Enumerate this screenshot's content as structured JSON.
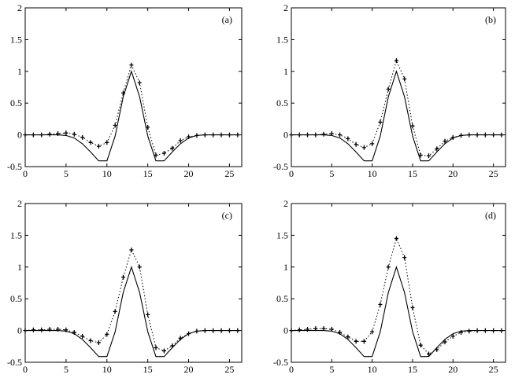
{
  "chart_data": [
    {
      "type": "line",
      "panel_label": "(a)",
      "xlim": [
        0,
        26.5
      ],
      "ylim": [
        -0.5,
        2
      ],
      "xticks": [
        0,
        5,
        10,
        15,
        20,
        25
      ],
      "yticks": [
        -0.5,
        0,
        0.5,
        1,
        1.5,
        2
      ],
      "xtick_labels": [
        "0",
        "5",
        "10",
        "15",
        "20",
        "25"
      ],
      "ytick_labels": [
        "-0.5",
        "0",
        "0.5",
        "1",
        "1.5",
        "2"
      ],
      "grid": false,
      "series": [
        {
          "style": "solid",
          "x": [
            0,
            1,
            2,
            3,
            4,
            5,
            6,
            7,
            8,
            9,
            10,
            11,
            12,
            13,
            14,
            15,
            16,
            17,
            18,
            19,
            20,
            21,
            22,
            23,
            24,
            25,
            26
          ],
          "y": [
            0,
            0,
            0,
            0,
            0,
            -0.01,
            -0.05,
            -0.14,
            -0.27,
            -0.41,
            -0.41,
            -0.02,
            0.6,
            1.0,
            0.6,
            -0.02,
            -0.41,
            -0.41,
            -0.27,
            -0.14,
            -0.05,
            -0.01,
            0,
            0,
            0,
            0,
            0
          ]
        },
        {
          "style": "dotted-plus",
          "x": [
            0,
            1,
            2,
            3,
            4,
            5,
            6,
            7,
            8,
            9,
            10,
            11,
            12,
            13,
            14,
            15,
            16,
            17,
            18,
            19,
            20,
            21,
            22,
            23,
            24,
            25,
            26
          ],
          "y": [
            0,
            0,
            0,
            0.01,
            0.02,
            0.03,
            0.01,
            -0.04,
            -0.12,
            -0.18,
            -0.12,
            0.15,
            0.66,
            1.1,
            0.82,
            0.12,
            -0.32,
            -0.29,
            -0.21,
            -0.09,
            -0.03,
            -0.01,
            0,
            0,
            0,
            0,
            0
          ]
        }
      ]
    },
    {
      "type": "line",
      "panel_label": "(b)",
      "xlim": [
        0,
        26.5
      ],
      "ylim": [
        -0.5,
        2
      ],
      "xticks": [
        0,
        5,
        10,
        15,
        20,
        25
      ],
      "yticks": [
        -0.5,
        0,
        0.5,
        1,
        1.5,
        2
      ],
      "xtick_labels": [
        "0",
        "5",
        "10",
        "15",
        "20",
        "25"
      ],
      "ytick_labels": [
        "-0.5",
        "0",
        "0.5",
        "1",
        "1.5",
        "2"
      ],
      "grid": false,
      "series": [
        {
          "style": "solid",
          "x": [
            0,
            1,
            2,
            3,
            4,
            5,
            6,
            7,
            8,
            9,
            10,
            11,
            12,
            13,
            14,
            15,
            16,
            17,
            18,
            19,
            20,
            21,
            22,
            23,
            24,
            25,
            26
          ],
          "y": [
            0,
            0,
            0,
            0,
            0,
            -0.01,
            -0.05,
            -0.14,
            -0.27,
            -0.41,
            -0.41,
            -0.02,
            0.6,
            1.0,
            0.6,
            -0.02,
            -0.41,
            -0.41,
            -0.27,
            -0.14,
            -0.05,
            -0.01,
            0,
            0,
            0,
            0,
            0
          ]
        },
        {
          "style": "dotted-plus",
          "x": [
            0,
            1,
            2,
            3,
            4,
            5,
            6,
            7,
            8,
            9,
            10,
            11,
            12,
            13,
            14,
            15,
            16,
            17,
            18,
            19,
            20,
            21,
            22,
            23,
            24,
            25,
            26
          ],
          "y": [
            0,
            0,
            0,
            0,
            0.01,
            0.02,
            0.0,
            -0.06,
            -0.15,
            -0.2,
            -0.14,
            0.2,
            0.72,
            1.17,
            0.88,
            0.14,
            -0.32,
            -0.33,
            -0.22,
            -0.1,
            -0.04,
            -0.01,
            0,
            0,
            0,
            0,
            0
          ]
        }
      ]
    },
    {
      "type": "line",
      "panel_label": "(c)",
      "xlim": [
        0,
        26.5
      ],
      "ylim": [
        -0.5,
        2
      ],
      "xticks": [
        0,
        5,
        10,
        15,
        20,
        25
      ],
      "yticks": [
        -0.5,
        0,
        0.5,
        1,
        1.5,
        2
      ],
      "xtick_labels": [
        "0",
        "5",
        "10",
        "15",
        "20",
        "25"
      ],
      "ytick_labels": [
        "-0.5",
        "0",
        "0.5",
        "1",
        "1.5",
        "2"
      ],
      "grid": false,
      "series": [
        {
          "style": "solid",
          "x": [
            0,
            1,
            2,
            3,
            4,
            5,
            6,
            7,
            8,
            9,
            10,
            11,
            12,
            13,
            14,
            15,
            16,
            17,
            18,
            19,
            20,
            21,
            22,
            23,
            24,
            25,
            26
          ],
          "y": [
            0,
            0,
            0,
            0,
            0,
            -0.01,
            -0.05,
            -0.14,
            -0.27,
            -0.41,
            -0.41,
            -0.02,
            0.6,
            1.0,
            0.6,
            -0.02,
            -0.41,
            -0.41,
            -0.27,
            -0.14,
            -0.05,
            -0.01,
            0,
            0,
            0,
            0,
            0
          ]
        },
        {
          "style": "dotted-plus",
          "x": [
            0,
            1,
            2,
            3,
            4,
            5,
            6,
            7,
            8,
            9,
            10,
            11,
            12,
            13,
            14,
            15,
            16,
            17,
            18,
            19,
            20,
            21,
            22,
            23,
            24,
            25,
            26
          ],
          "y": [
            0,
            0.01,
            0.01,
            0.02,
            0.02,
            0.01,
            -0.03,
            -0.09,
            -0.16,
            -0.19,
            -0.06,
            0.3,
            0.84,
            1.27,
            1.0,
            0.25,
            -0.27,
            -0.32,
            -0.24,
            -0.12,
            -0.05,
            -0.01,
            0,
            0,
            0,
            0,
            0
          ]
        }
      ]
    },
    {
      "type": "line",
      "panel_label": "(d)",
      "xlim": [
        0,
        26.5
      ],
      "ylim": [
        -0.5,
        2
      ],
      "xticks": [
        0,
        5,
        10,
        15,
        20,
        25
      ],
      "yticks": [
        -0.5,
        0,
        0.5,
        1,
        1.5,
        2
      ],
      "xtick_labels": [
        "0",
        "5",
        "10",
        "15",
        "20",
        "25"
      ],
      "ytick_labels": [
        "-0.5",
        "0",
        "0.5",
        "1",
        "1.5",
        "2"
      ],
      "grid": false,
      "series": [
        {
          "style": "solid",
          "x": [
            0,
            1,
            2,
            3,
            4,
            5,
            6,
            7,
            8,
            9,
            10,
            11,
            12,
            13,
            14,
            15,
            16,
            17,
            18,
            19,
            20,
            21,
            22,
            23,
            24,
            25,
            26
          ],
          "y": [
            0,
            0,
            0,
            0,
            0,
            -0.01,
            -0.05,
            -0.14,
            -0.27,
            -0.41,
            -0.41,
            -0.02,
            0.6,
            1.0,
            0.6,
            -0.02,
            -0.41,
            -0.41,
            -0.27,
            -0.14,
            -0.05,
            -0.01,
            0,
            0,
            0,
            0,
            0
          ]
        },
        {
          "style": "dotted-plus",
          "x": [
            0,
            1,
            2,
            3,
            4,
            5,
            6,
            7,
            8,
            9,
            10,
            11,
            12,
            13,
            14,
            15,
            16,
            17,
            18,
            19,
            20,
            21,
            22,
            23,
            24,
            25,
            26
          ],
          "y": [
            0,
            0.01,
            0.02,
            0.03,
            0.03,
            0.02,
            -0.03,
            -0.1,
            -0.17,
            -0.17,
            -0.02,
            0.41,
            1.0,
            1.45,
            1.15,
            0.36,
            -0.23,
            -0.37,
            -0.3,
            -0.18,
            -0.09,
            -0.03,
            -0.01,
            0,
            0,
            0,
            0
          ]
        }
      ]
    }
  ]
}
